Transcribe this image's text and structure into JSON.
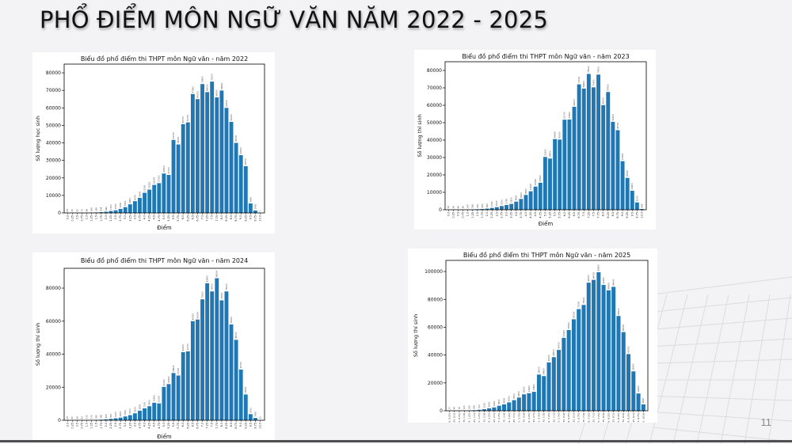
{
  "slide": {
    "title": "PHỔ ĐIỂM MÔN NGỮ VĂN NĂM 2022 - 2025",
    "page_number": "11"
  },
  "colors": {
    "bar": "#1f77b4",
    "background": "#f3f2f4"
  },
  "chart_data": [
    {
      "type": "bar",
      "title": "Biểu đồ phổ điểm thi THPT môn Ngữ văn - năm 2022",
      "xlabel": "Điểm",
      "ylabel": "Số lượng học sinh",
      "ylim": [
        0,
        85000
      ],
      "yticks": [
        0,
        10000,
        20000,
        30000,
        40000,
        50000,
        60000,
        70000,
        80000
      ],
      "categories": [
        "0.0",
        "0.25",
        "0.5",
        "0.75",
        "1.0",
        "1.25",
        "1.5",
        "1.75",
        "2.0",
        "2.25",
        "2.5",
        "2.75",
        "3.0",
        "3.25",
        "3.5",
        "3.75",
        "4.0",
        "4.25",
        "4.5",
        "4.75",
        "5.0",
        "5.25",
        "5.5",
        "5.75",
        "6.0",
        "6.25",
        "6.5",
        "6.75",
        "7.0",
        "7.25",
        "7.5",
        "7.75",
        "8.0",
        "8.25",
        "8.5",
        "8.75",
        "9.0",
        "9.25",
        "9.5",
        "9.75",
        "10.0"
      ],
      "values": [
        28,
        30,
        52,
        72,
        98,
        165,
        280,
        434,
        690,
        1100,
        1500,
        2300,
        3300,
        4900,
        6700,
        8600,
        11500,
        13300,
        16000,
        17000,
        22500,
        21700,
        41700,
        39100,
        50700,
        51700,
        67900,
        65000,
        73600,
        69000,
        75000,
        66000,
        69900,
        60000,
        52000,
        40000,
        33000,
        26700,
        5400,
        1400,
        7
      ]
    },
    {
      "type": "bar",
      "title": "Biểu đồ phổ điểm thi THPT môn Ngữ văn - năm 2023",
      "xlabel": "Điểm",
      "ylabel": "Số lượng thí sinh",
      "ylim": [
        0,
        85000
      ],
      "yticks": [
        0,
        10000,
        20000,
        30000,
        40000,
        50000,
        60000,
        70000,
        80000
      ],
      "categories": [
        "0.0",
        "0.25",
        "0.5",
        "0.75",
        "1.0",
        "1.25",
        "1.5",
        "1.75",
        "2.0",
        "2.25",
        "2.5",
        "2.75",
        "3.0",
        "3.25",
        "3.5",
        "3.75",
        "4.0",
        "4.25",
        "4.5",
        "4.75",
        "5.0",
        "5.25",
        "5.5",
        "5.75",
        "6.0",
        "6.25",
        "6.5",
        "6.75",
        "7.0",
        "7.25",
        "7.5",
        "7.75",
        "8.0",
        "8.25",
        "8.5",
        "8.75",
        "9.0",
        "9.25",
        "9.5",
        "9.75",
        "10.0"
      ],
      "values": [
        18,
        26,
        48,
        90,
        140,
        196,
        300,
        450,
        650,
        1040,
        1500,
        2150,
        2750,
        3350,
        4650,
        6200,
        8500,
        10600,
        13300,
        15500,
        30300,
        29400,
        40600,
        40300,
        51700,
        51800,
        59100,
        72000,
        69600,
        78000,
        70300,
        77600,
        60100,
        67600,
        50500,
        45700,
        27900,
        18300,
        10900,
        4200,
        443
      ]
    },
    {
      "type": "bar",
      "title": "Biểu đồ phổ điểm thi THPT môn Ngữ văn - năm 2024",
      "xlabel": "Điểm",
      "ylabel": "Số lượng thí sinh",
      "ylim": [
        0,
        92000
      ],
      "yticks": [
        0,
        20000,
        40000,
        60000,
        80000
      ],
      "categories": [
        "0.0",
        "0.25",
        "0.5",
        "0.75",
        "1.0",
        "1.25",
        "1.5",
        "1.75",
        "2.0",
        "2.25",
        "2.5",
        "2.75",
        "3.0",
        "3.25",
        "3.5",
        "3.75",
        "4.0",
        "4.25",
        "4.5",
        "4.75",
        "5.0",
        "5.25",
        "5.5",
        "5.75",
        "6.0",
        "6.25",
        "6.5",
        "6.75",
        "7.0",
        "7.25",
        "7.5",
        "7.75",
        "8.0",
        "8.25",
        "8.5",
        "8.75",
        "9.0",
        "9.25",
        "9.5",
        "9.75",
        "10.0"
      ],
      "values": [
        28,
        40,
        56,
        80,
        110,
        170,
        250,
        380,
        600,
        850,
        1200,
        1600,
        2300,
        3100,
        4200,
        5800,
        7200,
        8500,
        10600,
        10200,
        20200,
        21900,
        28600,
        27100,
        41200,
        41700,
        60000,
        61000,
        73200,
        82900,
        78000,
        86000,
        72600,
        78000,
        58000,
        48700,
        30700,
        15600,
        3700,
        1400,
        12
      ]
    },
    {
      "type": "bar",
      "title": "Biểu đồ phổ điểm thi THPT môn Ngữ văn - năm 2025",
      "xlabel": "",
      "ylabel": "Số lượng thí sinh",
      "ylim": [
        0,
        108000
      ],
      "yticks": [
        0,
        20000,
        40000,
        60000,
        80000,
        100000
      ],
      "categories": [
        "(0.0, 0.25]",
        "(0.25, 0.5]",
        "(0.5, 0.75]",
        "(0.75, 1.0]",
        "(1.0, 1.25]",
        "(1.25, 1.5]",
        "(1.5, 1.75]",
        "(1.75, 2.0]",
        "(2.0, 2.25]",
        "(2.25, 2.5]",
        "(2.5, 2.75]",
        "(2.75, 3.0]",
        "(3.0, 3.25]",
        "(3.25, 3.5]",
        "(3.5, 3.75]",
        "(3.75, 4.0]",
        "(4.0, 4.25]",
        "(4.25, 4.5]",
        "(4.5, 4.75]",
        "(4.75, 5.0]",
        "(5.0, 5.25]",
        "(5.25, 5.5]",
        "(5.5, 5.75]",
        "(5.75, 6.0]",
        "(6.0, 6.25]",
        "(6.25, 6.5]",
        "(6.5, 6.75]",
        "(6.75, 7.0]",
        "(7.0, 7.25]",
        "(7.25, 7.5]",
        "(7.5, 7.75]",
        "(7.75, 8.0]",
        "(8.0, 8.25]",
        "(8.25, 8.5]",
        "(8.5, 8.75]",
        "(8.75, 9.0]",
        "(9.0, 9.25]",
        "(9.25, 9.5]",
        "(9.5, 9.75]",
        "(9.75, 10.0]"
      ],
      "values": [
        27,
        44,
        78,
        120,
        230,
        400,
        700,
        1150,
        1800,
        2400,
        3600,
        4600,
        6000,
        7600,
        9500,
        11800,
        12600,
        13600,
        26000,
        24900,
        34700,
        38500,
        43700,
        52400,
        58000,
        65700,
        73000,
        76000,
        92000,
        94000,
        99500,
        90400,
        86500,
        89000,
        68100,
        56500,
        40700,
        28300,
        12400,
        4600
      ]
    }
  ]
}
